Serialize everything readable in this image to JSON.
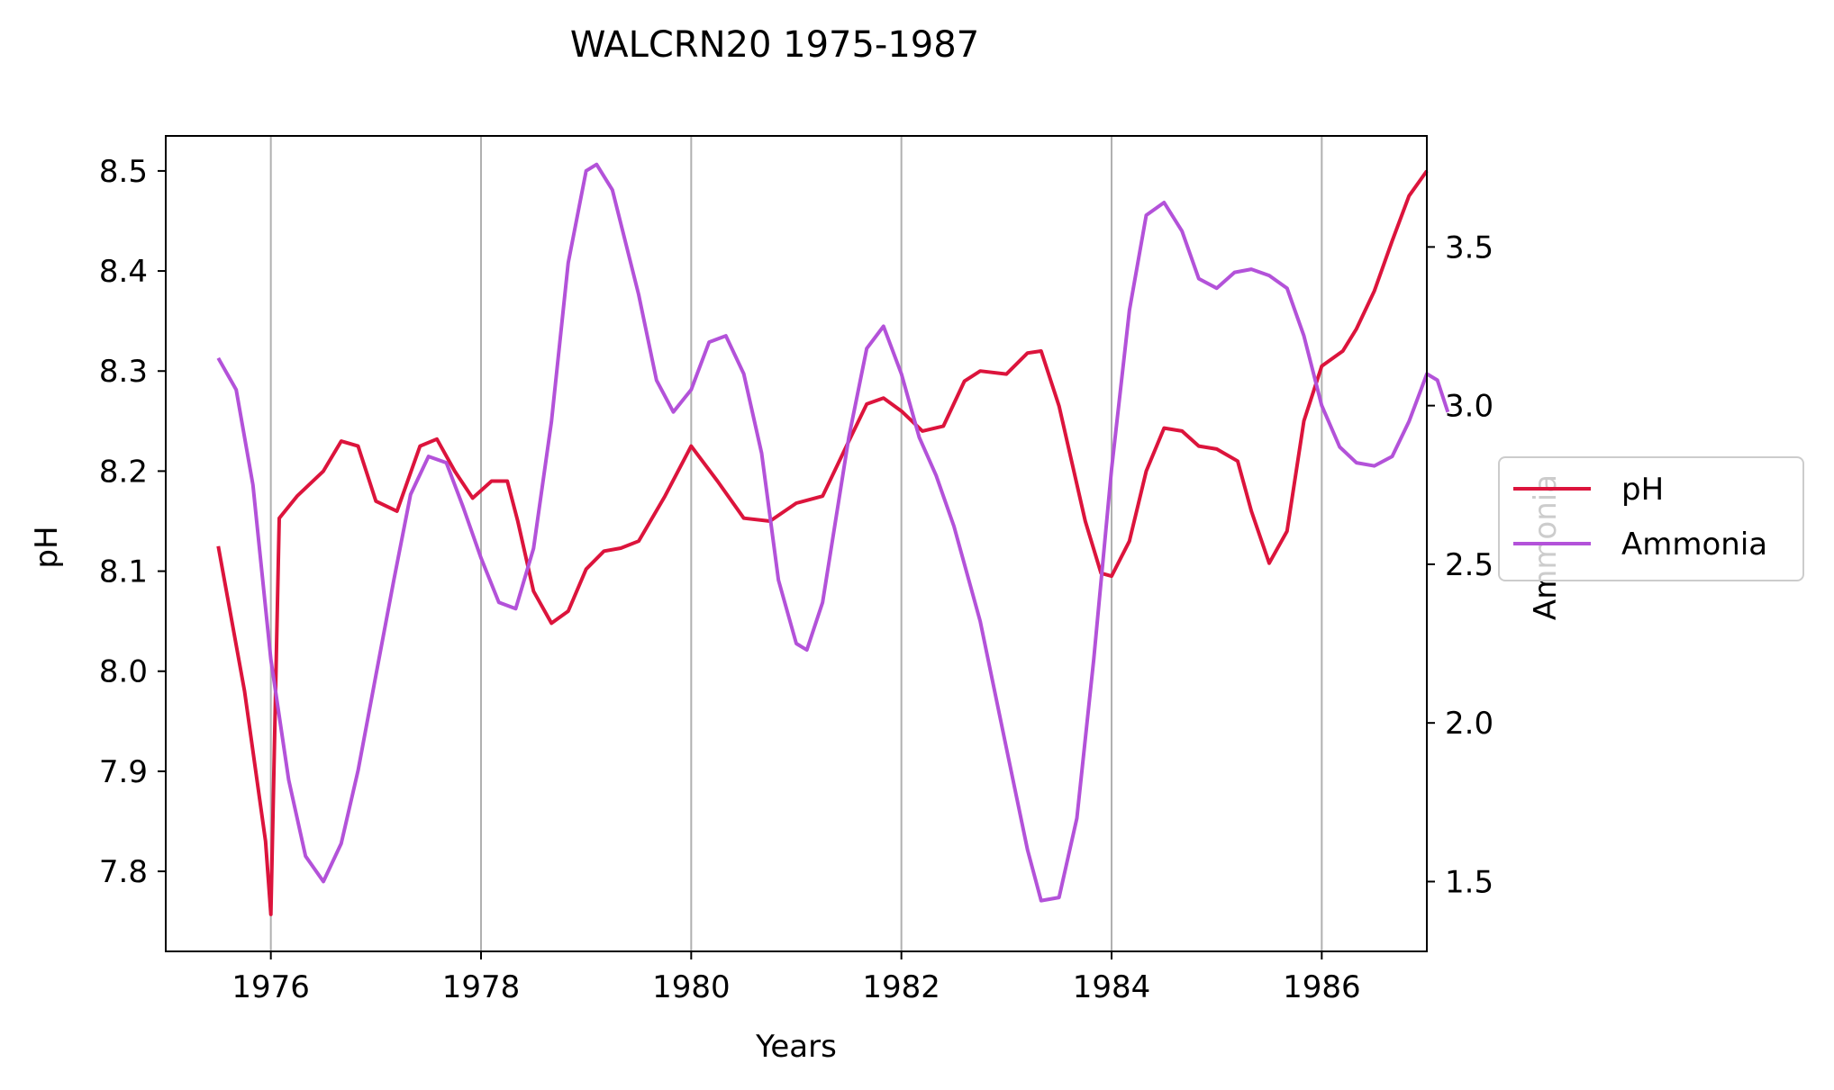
{
  "chart_data": {
    "type": "line",
    "title": "WALCRN20 1975-1987",
    "xlabel": "Years",
    "ylabel_left": "pH",
    "ylabel_right": "Ammonia",
    "xlim": [
      1975.0,
      1987.0
    ],
    "ylim_left": [
      7.72,
      8.535
    ],
    "ylim_right": [
      1.28,
      3.85
    ],
    "x_ticks": [
      1976,
      1978,
      1980,
      1982,
      1984,
      1986
    ],
    "y_ticks_left": [
      7.8,
      7.9,
      8.0,
      8.1,
      8.2,
      8.3,
      8.4,
      8.5
    ],
    "y_ticks_right": [
      1.5,
      2.0,
      2.5,
      3.0,
      3.5
    ],
    "grid": "vertical at x ticks",
    "legend_placement": "right, outside plot",
    "series": [
      {
        "name": "pH",
        "axis": "left",
        "color": "#dc143c",
        "points": [
          [
            1975.5,
            8.125
          ],
          [
            1975.75,
            7.98
          ],
          [
            1975.95,
            7.83
          ],
          [
            1976.0,
            7.757
          ],
          [
            1976.08,
            8.153
          ],
          [
            1976.25,
            8.175
          ],
          [
            1976.5,
            8.2
          ],
          [
            1976.67,
            8.23
          ],
          [
            1976.83,
            8.225
          ],
          [
            1977.0,
            8.17
          ],
          [
            1977.2,
            8.16
          ],
          [
            1977.42,
            8.225
          ],
          [
            1977.58,
            8.232
          ],
          [
            1977.75,
            8.2
          ],
          [
            1977.92,
            8.173
          ],
          [
            1978.1,
            8.19
          ],
          [
            1978.25,
            8.19
          ],
          [
            1978.35,
            8.15
          ],
          [
            1978.5,
            8.08
          ],
          [
            1978.67,
            8.048
          ],
          [
            1978.83,
            8.06
          ],
          [
            1979.0,
            8.102
          ],
          [
            1979.17,
            8.12
          ],
          [
            1979.33,
            8.123
          ],
          [
            1979.5,
            8.13
          ],
          [
            1979.75,
            8.175
          ],
          [
            1980.0,
            8.225
          ],
          [
            1980.25,
            8.19
          ],
          [
            1980.5,
            8.153
          ],
          [
            1980.75,
            8.15
          ],
          [
            1981.0,
            8.168
          ],
          [
            1981.25,
            8.175
          ],
          [
            1981.5,
            8.23
          ],
          [
            1981.67,
            8.267
          ],
          [
            1981.83,
            8.273
          ],
          [
            1982.0,
            8.26
          ],
          [
            1982.2,
            8.24
          ],
          [
            1982.4,
            8.245
          ],
          [
            1982.6,
            8.29
          ],
          [
            1982.75,
            8.3
          ],
          [
            1983.0,
            8.297
          ],
          [
            1983.2,
            8.318
          ],
          [
            1983.33,
            8.32
          ],
          [
            1983.5,
            8.265
          ],
          [
            1983.75,
            8.15
          ],
          [
            1983.9,
            8.098
          ],
          [
            1984.0,
            8.095
          ],
          [
            1984.17,
            8.13
          ],
          [
            1984.33,
            8.2
          ],
          [
            1984.5,
            8.243
          ],
          [
            1984.67,
            8.24
          ],
          [
            1984.83,
            8.225
          ],
          [
            1985.0,
            8.222
          ],
          [
            1985.2,
            8.21
          ],
          [
            1985.33,
            8.16
          ],
          [
            1985.5,
            8.108
          ],
          [
            1985.67,
            8.14
          ],
          [
            1985.83,
            8.25
          ],
          [
            1986.0,
            8.305
          ],
          [
            1986.2,
            8.32
          ],
          [
            1986.33,
            8.342
          ],
          [
            1986.5,
            8.38
          ],
          [
            1986.67,
            8.43
          ],
          [
            1986.83,
            8.475
          ],
          [
            1987.0,
            8.5
          ]
        ]
      },
      {
        "name": "Ammonia",
        "axis": "right",
        "color": "#b352d9",
        "points": [
          [
            1975.5,
            3.15
          ],
          [
            1975.67,
            3.05
          ],
          [
            1975.83,
            2.75
          ],
          [
            1976.0,
            2.2
          ],
          [
            1976.17,
            1.82
          ],
          [
            1976.33,
            1.58
          ],
          [
            1976.5,
            1.5
          ],
          [
            1976.67,
            1.62
          ],
          [
            1976.83,
            1.85
          ],
          [
            1977.0,
            2.15
          ],
          [
            1977.17,
            2.45
          ],
          [
            1977.33,
            2.72
          ],
          [
            1977.5,
            2.84
          ],
          [
            1977.67,
            2.82
          ],
          [
            1977.83,
            2.68
          ],
          [
            1978.0,
            2.52
          ],
          [
            1978.17,
            2.38
          ],
          [
            1978.33,
            2.36
          ],
          [
            1978.5,
            2.55
          ],
          [
            1978.67,
            2.95
          ],
          [
            1978.83,
            3.45
          ],
          [
            1979.0,
            3.74
          ],
          [
            1979.1,
            3.76
          ],
          [
            1979.25,
            3.68
          ],
          [
            1979.5,
            3.35
          ],
          [
            1979.67,
            3.08
          ],
          [
            1979.83,
            2.98
          ],
          [
            1980.0,
            3.05
          ],
          [
            1980.17,
            3.2
          ],
          [
            1980.33,
            3.22
          ],
          [
            1980.5,
            3.1
          ],
          [
            1980.67,
            2.85
          ],
          [
            1980.83,
            2.45
          ],
          [
            1981.0,
            2.25
          ],
          [
            1981.1,
            2.23
          ],
          [
            1981.25,
            2.38
          ],
          [
            1981.5,
            2.9
          ],
          [
            1981.67,
            3.18
          ],
          [
            1981.83,
            3.25
          ],
          [
            1982.0,
            3.1
          ],
          [
            1982.17,
            2.9
          ],
          [
            1982.33,
            2.78
          ],
          [
            1982.5,
            2.62
          ],
          [
            1982.75,
            2.32
          ],
          [
            1983.0,
            1.92
          ],
          [
            1983.2,
            1.6
          ],
          [
            1983.33,
            1.44
          ],
          [
            1983.5,
            1.45
          ],
          [
            1983.67,
            1.7
          ],
          [
            1983.83,
            2.2
          ],
          [
            1984.0,
            2.8
          ],
          [
            1984.17,
            3.3
          ],
          [
            1984.33,
            3.6
          ],
          [
            1984.5,
            3.64
          ],
          [
            1984.67,
            3.55
          ],
          [
            1984.83,
            3.4
          ],
          [
            1985.0,
            3.37
          ],
          [
            1985.17,
            3.42
          ],
          [
            1985.33,
            3.43
          ],
          [
            1985.5,
            3.41
          ],
          [
            1985.67,
            3.37
          ],
          [
            1985.83,
            3.22
          ],
          [
            1986.0,
            3.0
          ],
          [
            1986.17,
            2.87
          ],
          [
            1986.33,
            2.82
          ],
          [
            1986.5,
            2.81
          ],
          [
            1986.67,
            2.84
          ],
          [
            1986.83,
            2.95
          ],
          [
            1987.0,
            3.1
          ],
          [
            1987.1,
            3.08
          ],
          [
            1987.2,
            2.98
          ]
        ]
      }
    ]
  }
}
